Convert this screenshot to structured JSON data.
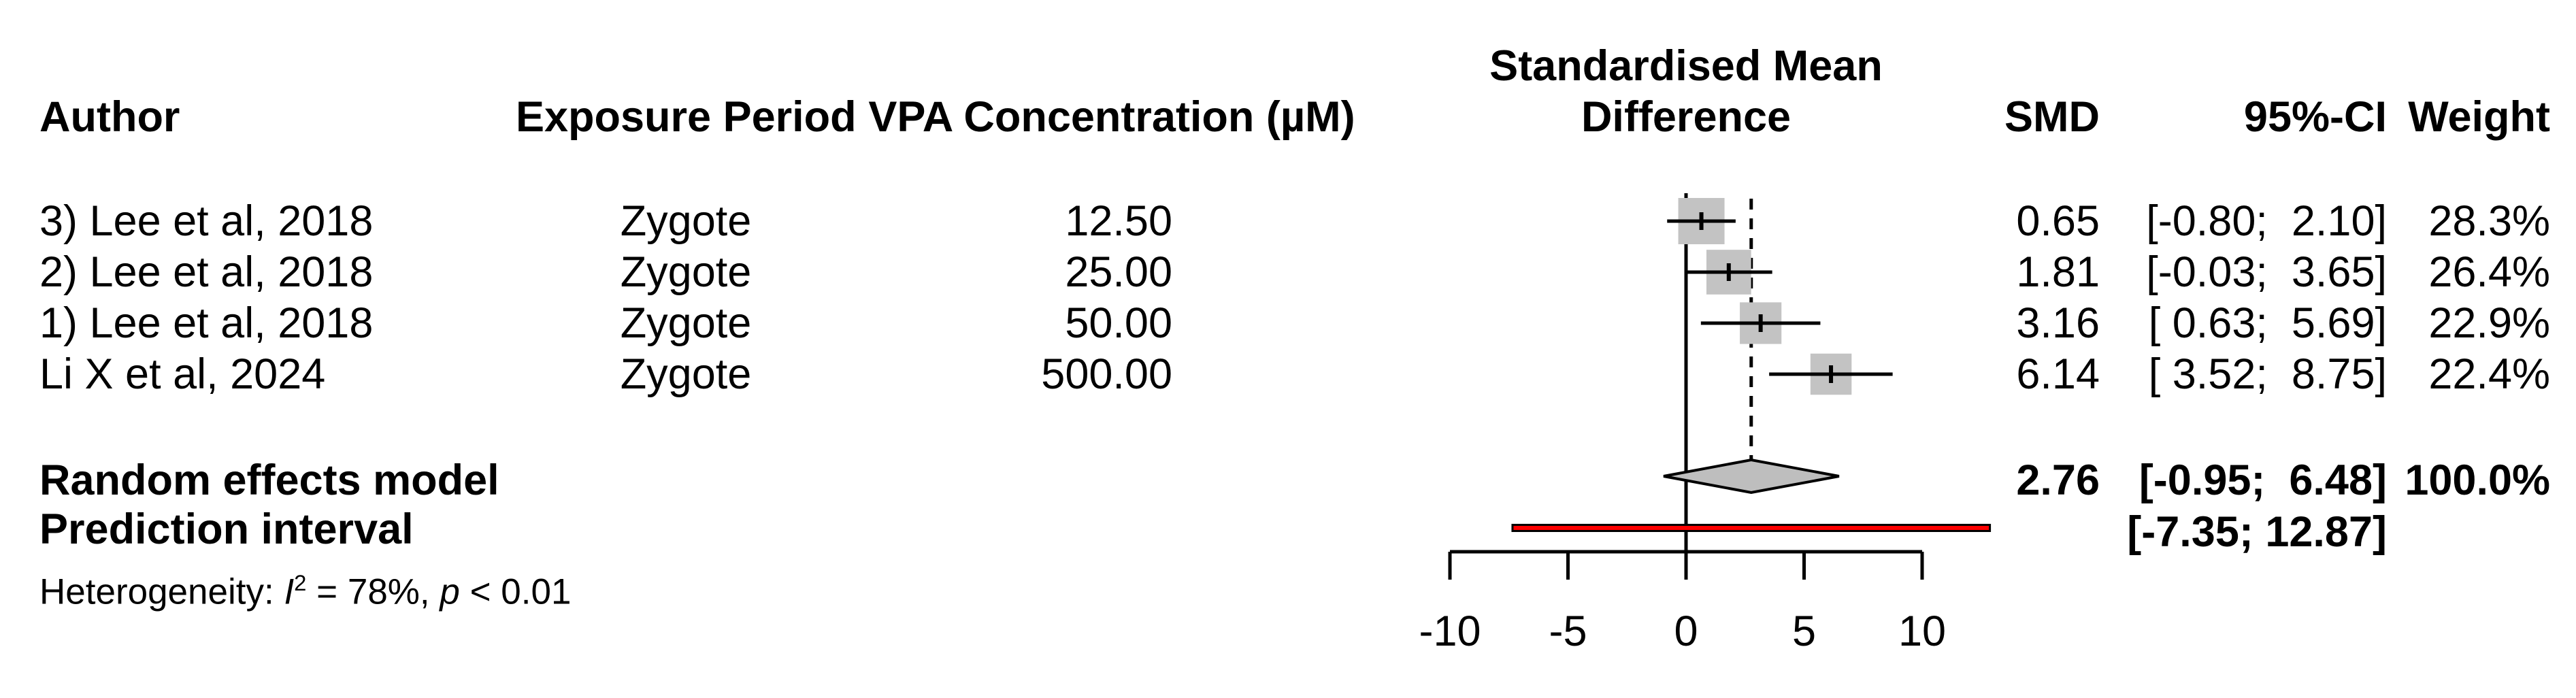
{
  "header": {
    "author": "Author",
    "exposure_period": "Exposure Period",
    "vpa_concentration": "VPA Concentration (µM)",
    "effect_line1": "Standardised Mean",
    "effect_line2": "Difference",
    "smd": "SMD",
    "ci": "95%-CI",
    "weight": "Weight"
  },
  "studies": [
    {
      "author": "3) Lee et al, 2018",
      "exposure_period": "Zygote",
      "vpa_concentration": "12.50",
      "smd_label": "0.65",
      "ci_label": "[-0.80;  2.10]",
      "weight_label": "28.3%"
    },
    {
      "author": "2) Lee et al, 2018",
      "exposure_period": "Zygote",
      "vpa_concentration": "25.00",
      "smd_label": "1.81",
      "ci_label": "[-0.03;  3.65]",
      "weight_label": "26.4%"
    },
    {
      "author": "1) Lee et al, 2018",
      "exposure_period": "Zygote",
      "vpa_concentration": "50.00",
      "smd_label": "3.16",
      "ci_label": "[ 0.63;  5.69]",
      "weight_label": "22.9%"
    },
    {
      "author": "Li X et al, 2024",
      "exposure_period": "Zygote",
      "vpa_concentration": "500.00",
      "smd_label": "6.14",
      "ci_label": "[ 3.52;  8.75]",
      "weight_label": "22.4%"
    }
  ],
  "summary": {
    "random_effects_label": "Random effects model",
    "smd_label": "2.76",
    "ci_label": "[-0.95;  6.48]",
    "weight_label": "100.0%",
    "prediction_label": "Prediction interval",
    "prediction_ci_label": "[-7.35; 12.87]",
    "heterogeneity_segments": [
      {
        "text": "Heterogeneity: ",
        "style": "normal"
      },
      {
        "text": "I",
        "style": "italic"
      },
      {
        "text": "2",
        "style": "sup"
      },
      {
        "text": " = 78%, ",
        "style": "normal"
      },
      {
        "text": "p",
        "style": "italic"
      },
      {
        "text": " < 0.01",
        "style": "normal"
      }
    ]
  },
  "axis": {
    "tick_labels": [
      "-10",
      "-5",
      "0",
      "5",
      "10"
    ]
  },
  "colors": {
    "square": "#c3c3c3",
    "diamond": "#bebebe",
    "prediction_bar": "#ff0000",
    "line": "#000000"
  },
  "chart_data": {
    "type": "scatter",
    "variant": "forest_plot",
    "title": "Standardised Mean Difference",
    "xlabel": "",
    "xlim": [
      -10,
      13
    ],
    "x_ticks": [
      -10,
      -5,
      0,
      5,
      10
    ],
    "reference_line_x": 0,
    "pooled_dashed_line_x": 2.76,
    "studies": [
      {
        "label": "3) Lee et al, 2018",
        "exposure_period": "Zygote",
        "vpa_concentration_uM": 12.5,
        "smd": 0.65,
        "ci95": [
          -0.8,
          2.1
        ],
        "weight_pct": 28.3
      },
      {
        "label": "2) Lee et al, 2018",
        "exposure_period": "Zygote",
        "vpa_concentration_uM": 25.0,
        "smd": 1.81,
        "ci95": [
          -0.03,
          3.65
        ],
        "weight_pct": 26.4
      },
      {
        "label": "1) Lee et al, 2018",
        "exposure_period": "Zygote",
        "vpa_concentration_uM": 50.0,
        "smd": 3.16,
        "ci95": [
          0.63,
          5.69
        ],
        "weight_pct": 22.9
      },
      {
        "label": "Li X et al, 2024",
        "exposure_period": "Zygote",
        "vpa_concentration_uM": 500.0,
        "smd": 6.14,
        "ci95": [
          3.52,
          8.75
        ],
        "weight_pct": 22.4
      }
    ],
    "pooled": {
      "model": "Random effects model",
      "smd": 2.76,
      "ci95": [
        -0.95,
        6.48
      ],
      "weight_pct": 100.0
    },
    "prediction_interval": [
      -7.35,
      12.87
    ],
    "heterogeneity": {
      "I2_pct": 78,
      "p": "< 0.01"
    }
  }
}
